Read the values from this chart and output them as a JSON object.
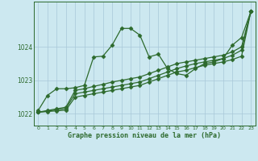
{
  "title": "Graphe pression niveau de la mer (hPa)",
  "background_color": "#cce8f0",
  "plot_bg_color": "#cce8f0",
  "grid_color": "#a8c8d8",
  "line_color": "#2d6a2d",
  "marker_color": "#2d6a2d",
  "xlim": [
    -0.5,
    23.5
  ],
  "ylim": [
    1021.65,
    1025.35
  ],
  "yticks": [
    1022,
    1023,
    1024
  ],
  "xticks": [
    0,
    1,
    2,
    3,
    4,
    5,
    6,
    7,
    8,
    9,
    10,
    11,
    12,
    13,
    14,
    15,
    16,
    17,
    18,
    19,
    20,
    21,
    22,
    23
  ],
  "series1": [
    1022.1,
    1022.55,
    1022.75,
    1022.75,
    1022.78,
    1022.85,
    1023.7,
    1023.72,
    1024.05,
    1024.55,
    1024.55,
    1024.35,
    1023.7,
    1023.78,
    1023.35,
    1023.2,
    1023.15,
    1023.35,
    1023.5,
    1023.55,
    1023.65,
    1024.05,
    1024.28,
    1025.05
  ],
  "series2": [
    1022.05,
    1022.1,
    1022.15,
    1022.2,
    1022.7,
    1022.75,
    1022.82,
    1022.88,
    1022.95,
    1023.0,
    1023.05,
    1023.1,
    1023.2,
    1023.3,
    1023.4,
    1023.5,
    1023.55,
    1023.6,
    1023.65,
    1023.7,
    1023.75,
    1023.85,
    1024.0,
    1025.05
  ],
  "series3": [
    1022.05,
    1022.08,
    1022.12,
    1022.16,
    1022.6,
    1022.65,
    1022.7,
    1022.75,
    1022.8,
    1022.85,
    1022.9,
    1022.95,
    1023.05,
    1023.15,
    1023.25,
    1023.35,
    1023.43,
    1023.5,
    1023.55,
    1023.6,
    1023.65,
    1023.75,
    1023.9,
    1025.05
  ],
  "series4": [
    1022.05,
    1022.07,
    1022.09,
    1022.11,
    1022.5,
    1022.55,
    1022.6,
    1022.65,
    1022.7,
    1022.75,
    1022.8,
    1022.85,
    1022.95,
    1023.05,
    1023.15,
    1023.25,
    1023.3,
    1023.38,
    1023.45,
    1023.5,
    1023.55,
    1023.62,
    1023.72,
    1025.05
  ]
}
